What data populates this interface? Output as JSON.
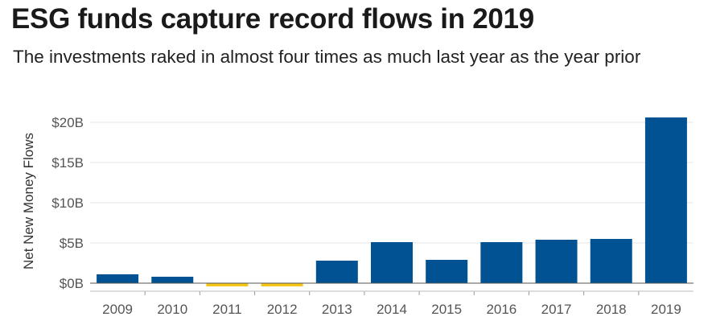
{
  "chart_data": {
    "type": "bar",
    "title": "ESG funds capture record flows in 2019",
    "subtitle": "The investments raked in almost four times as much last year as the year prior",
    "ylabel": "Net New Money Flows",
    "xlabel": "",
    "ylim": [
      -1,
      21
    ],
    "yticks": [
      0,
      5,
      10,
      15,
      20
    ],
    "yticklabels": [
      "$0B",
      "$5B",
      "$10B",
      "$15B",
      "$20B"
    ],
    "categories": [
      "2009",
      "2010",
      "2011",
      "2012",
      "2013",
      "2014",
      "2015",
      "2016",
      "2017",
      "2018",
      "2019"
    ],
    "values": [
      1.1,
      0.8,
      -0.4,
      -0.4,
      2.8,
      5.1,
      2.9,
      5.1,
      5.4,
      5.5,
      20.6
    ],
    "unit": "billion USD",
    "grid": true,
    "legend": "none",
    "colors": {
      "positive": "#005293",
      "negative": "#F5C518",
      "grid": "#e6e6e6",
      "axis": "#555555",
      "tick_text": "#555555"
    }
  }
}
